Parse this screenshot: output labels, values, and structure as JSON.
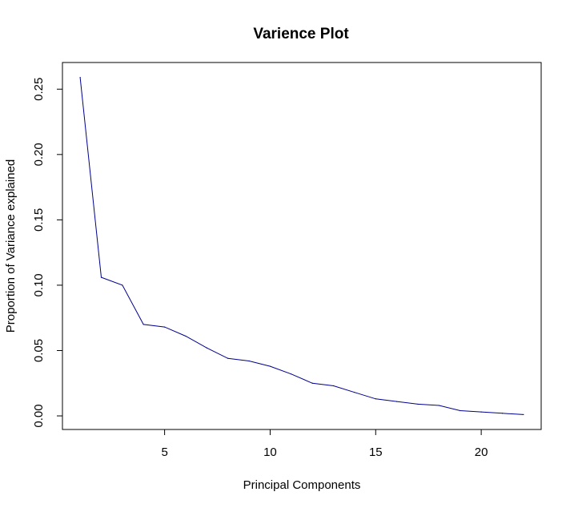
{
  "chart_data": {
    "type": "line",
    "title": "Varience Plot",
    "xlabel": "Principal Components",
    "ylabel": "Proportion of Variance explained",
    "xlim": [
      0.16,
      22.84
    ],
    "ylim": [
      -0.0104,
      0.2704
    ],
    "x_ticks": [
      5,
      10,
      15,
      20
    ],
    "x_tick_labels": [
      "5",
      "10",
      "15",
      "20"
    ],
    "y_ticks": [
      0.0,
      0.05,
      0.1,
      0.15,
      0.2,
      0.25
    ],
    "y_tick_labels": [
      "0.00",
      "0.05",
      "0.10",
      "0.15",
      "0.20",
      "0.25"
    ],
    "grid": false,
    "line_color": "#00008b",
    "series": [
      {
        "name": "Proportion of Variance explained",
        "x": [
          1,
          2,
          3,
          4,
          5,
          6,
          7,
          8,
          9,
          10,
          11,
          12,
          13,
          14,
          15,
          16,
          17,
          18,
          19,
          20,
          21,
          22
        ],
        "values": [
          0.259,
          0.106,
          0.1,
          0.07,
          0.068,
          0.061,
          0.052,
          0.044,
          0.042,
          0.038,
          0.032,
          0.025,
          0.023,
          0.018,
          0.013,
          0.011,
          0.009,
          0.008,
          0.004,
          0.003,
          0.002,
          0.001
        ]
      }
    ]
  }
}
